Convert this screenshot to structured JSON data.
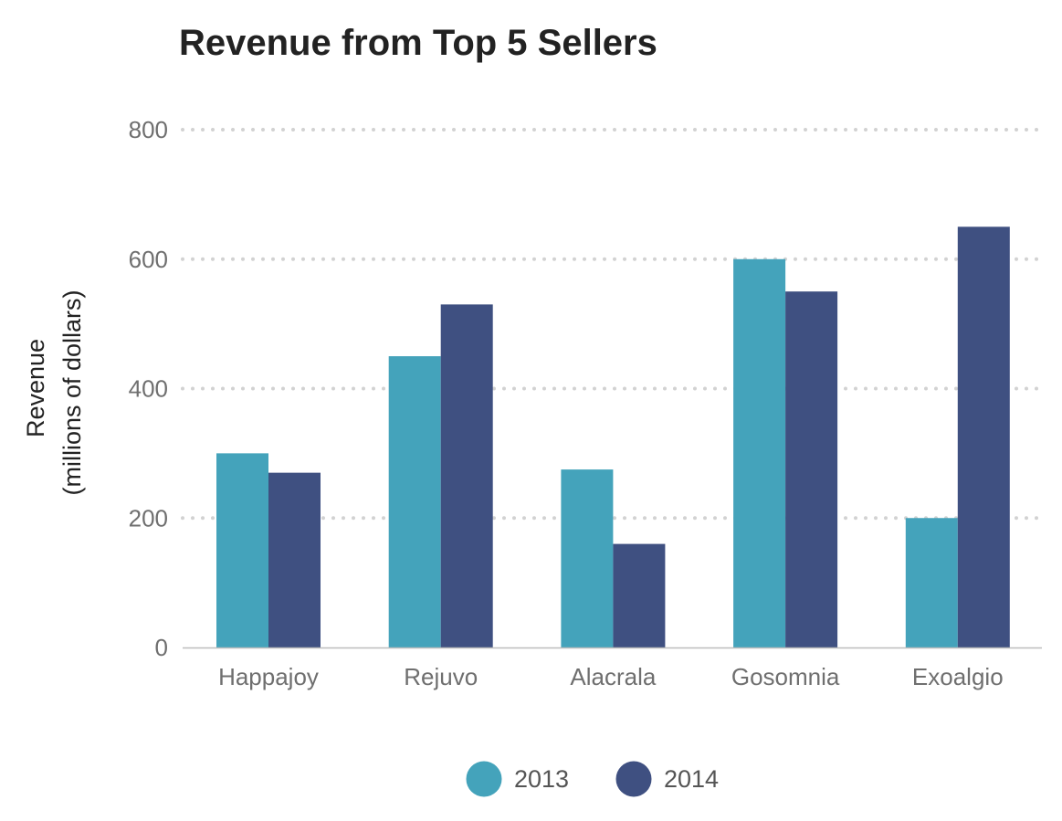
{
  "chart_data": {
    "type": "bar",
    "title": "Revenue from Top 5 Sellers",
    "ylabel_line1": "Revenue",
    "ylabel_line2": "(millions of dollars)",
    "categories": [
      "Happajoy",
      "Rejuvo",
      "Alacrala",
      "Gosomnia",
      "Exoalgio"
    ],
    "series": [
      {
        "name": "2013",
        "color": "#44A3BB",
        "values": [
          300,
          450,
          275,
          600,
          200
        ]
      },
      {
        "name": "2014",
        "color": "#3F5081",
        "values": [
          270,
          530,
          160,
          550,
          650
        ]
      }
    ],
    "yticks": [
      0,
      200,
      400,
      600,
      800
    ],
    "ylim": [
      0,
      800
    ],
    "grid": true,
    "legend_position": "bottom"
  }
}
